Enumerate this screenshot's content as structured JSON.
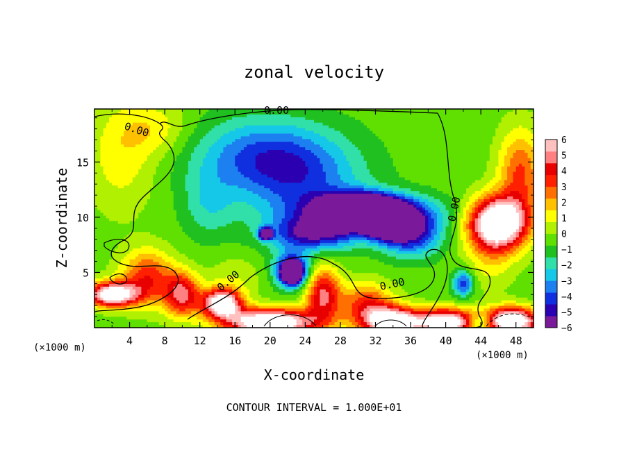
{
  "chart_data": {
    "type": "heatmap",
    "title": "zonal velocity",
    "xlabel": "X-coordinate",
    "ylabel": "Z-coordinate",
    "x_unit_label": "(×1000 m)",
    "x_unit_label_left": "(×1000 m)",
    "footer": "CONTOUR INTERVAL = 1.000E+01",
    "xlim": [
      0,
      50
    ],
    "ylim": [
      0,
      19.8
    ],
    "x_ticks": [
      4,
      8,
      12,
      16,
      20,
      24,
      28,
      32,
      36,
      40,
      44,
      48
    ],
    "x_tick_labels": [
      "4",
      "8",
      "12",
      "16",
      "20",
      "24",
      "28",
      "32",
      "36",
      "40",
      "44",
      "48"
    ],
    "y_ticks": [
      5,
      10,
      15
    ],
    "y_tick_labels": [
      "5",
      "10",
      "15"
    ],
    "colorbar": {
      "min": -6,
      "max": 6,
      "tick_values": [
        6,
        5,
        4,
        3,
        2,
        1,
        0,
        -1,
        -2,
        -3,
        -4,
        -5,
        -6
      ],
      "tick_labels": [
        "6",
        "5",
        "4",
        "3",
        "2",
        "1",
        "0",
        "−1",
        "−2",
        "−3",
        "−4",
        "−5",
        "−6"
      ],
      "colors": [
        "#7a1a9a",
        "#2a00b0",
        "#1030e0",
        "#1c80f0",
        "#16c8e8",
        "#30e0a8",
        "#20c020",
        "#60e000",
        "#b0f000",
        "#ffff00",
        "#ffc000",
        "#ff7000",
        "#ff2000",
        "#e80000",
        "#ff8080",
        "#ffc0c0"
      ]
    },
    "contour_labels": [
      "0.00",
      "0.00",
      "0.00",
      "0.00",
      "0.00"
    ],
    "field_features": [
      {
        "x": 19,
        "z": 15.5,
        "value": -3.2,
        "sx": 8,
        "sz": 3.5
      },
      {
        "x": 24,
        "z": 13,
        "value": -2.5,
        "sx": 7,
        "sz": 4
      },
      {
        "x": 31,
        "z": 10.5,
        "value": -5.5,
        "sx": 7,
        "sz": 1.6
      },
      {
        "x": 36,
        "z": 8.5,
        "value": -4.5,
        "sx": 3.5,
        "sz": 2
      },
      {
        "x": 25,
        "z": 8.5,
        "value": -4.5,
        "sx": 5,
        "sz": 1.5
      },
      {
        "x": 22.5,
        "z": 5.2,
        "value": -5,
        "sx": 2,
        "sz": 1.6
      },
      {
        "x": 30.5,
        "z": 10.6,
        "value": -9,
        "sx": 3.8,
        "sz": 1.3
      },
      {
        "x": 33.5,
        "z": 9.3,
        "value": -7,
        "sx": 2.5,
        "sz": 1.2
      },
      {
        "x": 22.5,
        "z": 5.0,
        "value": -8,
        "sx": 1.1,
        "sz": 0.9
      },
      {
        "x": 19.5,
        "z": 8.5,
        "value": -8,
        "sx": 0.7,
        "sz": 0.5
      },
      {
        "x": 46,
        "z": 9.5,
        "value": 9,
        "sx": 3.2,
        "sz": 2.3
      },
      {
        "x": 48.5,
        "z": 14,
        "value": 3.5,
        "sx": 2.5,
        "sz": 4
      },
      {
        "x": 45,
        "z": 6.5,
        "value": 1.5,
        "sx": 3,
        "sz": 3
      },
      {
        "x": 3,
        "z": 15.5,
        "value": 1.6,
        "sx": 4,
        "sz": 5
      },
      {
        "x": 7,
        "z": 18,
        "value": 1.5,
        "sx": 4,
        "sz": 2.5
      },
      {
        "x": 2,
        "z": 3,
        "value": 8,
        "sx": 2.8,
        "sz": 1.1
      },
      {
        "x": 6,
        "z": 4.5,
        "value": 4,
        "sx": 3,
        "sz": 2.5
      },
      {
        "x": 10,
        "z": 3,
        "value": 5,
        "sx": 2,
        "sz": 2
      },
      {
        "x": 14.5,
        "z": 2.2,
        "value": 8,
        "sx": 2.2,
        "sz": 1.3
      },
      {
        "x": 20,
        "z": 0.5,
        "value": 9,
        "sx": 5,
        "sz": 1.2
      },
      {
        "x": 26,
        "z": 3,
        "value": 5,
        "sx": 2,
        "sz": 2.5
      },
      {
        "x": 31,
        "z": 2,
        "value": 4,
        "sx": 3,
        "sz": 2
      },
      {
        "x": 34,
        "z": 0.5,
        "value": 8,
        "sx": 3,
        "sz": 1.3
      },
      {
        "x": 40,
        "z": 0.5,
        "value": 8,
        "sx": 3.5,
        "sz": 1.2
      },
      {
        "x": 47.5,
        "z": 0.6,
        "value": 9,
        "sx": 3,
        "sz": 1.2
      },
      {
        "x": 16,
        "z": 4.5,
        "value": 1,
        "sx": 3,
        "sz": 2
      },
      {
        "x": 42,
        "z": 4,
        "value": -4,
        "sx": 1.2,
        "sz": 1.2
      },
      {
        "x": 44,
        "z": 0.5,
        "value": -3,
        "sx": 1.5,
        "sz": 0.8
      },
      {
        "x": 13,
        "z": 11,
        "value": -1.5,
        "sx": 3,
        "sz": 3
      }
    ],
    "background_value": -0.4
  }
}
